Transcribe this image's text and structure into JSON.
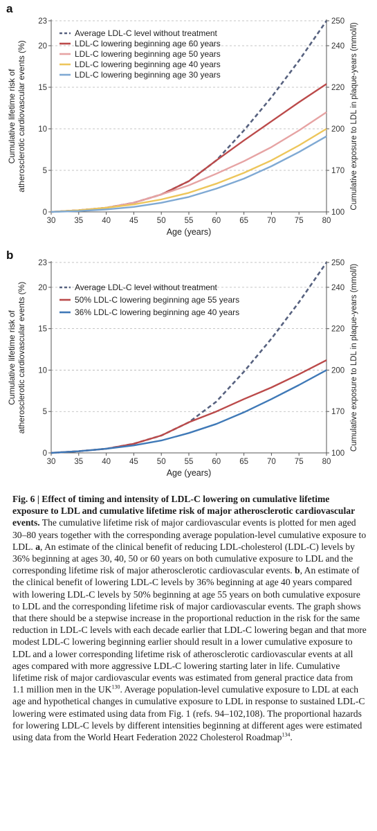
{
  "chart_data": [
    {
      "panel_label": "a",
      "type": "line",
      "xlabel": "Age (years)",
      "ylabel_lines": [
        "Cumulative lifetime risk of",
        "atherosclerotic cardiovascular events (%)"
      ],
      "y2label": "Cumulative exposure to LDL in plaque-years (mmol/l)",
      "xlim": [
        30,
        80
      ],
      "ylim": [
        0,
        23
      ],
      "xticks": [
        "30",
        "35",
        "40",
        "45",
        "50",
        "55",
        "60",
        "65",
        "70",
        "75",
        "80"
      ],
      "yticks": [
        "0",
        "5",
        "10",
        "15",
        "20",
        "23"
      ],
      "y2ticks": [
        "100",
        "170",
        "200",
        "220",
        "240",
        "250"
      ],
      "grid": true,
      "legend_position": "top-left",
      "x": [
        30,
        35,
        40,
        45,
        50,
        55,
        60,
        65,
        70,
        75,
        80
      ],
      "series": [
        {
          "name": "Average LDL-C level without treatment",
          "color": "#56617f",
          "dashed": true,
          "values": [
            0,
            0.2,
            0.5,
            1.1,
            2.1,
            3.7,
            6.2,
            9.8,
            13.8,
            18.2,
            23.0
          ]
        },
        {
          "name": "LDL-C lowering beginning age 60 years",
          "color": "#bb4a4a",
          "dashed": false,
          "values": [
            0,
            0.2,
            0.5,
            1.1,
            2.1,
            3.7,
            6.2,
            8.6,
            10.9,
            13.2,
            15.4
          ]
        },
        {
          "name": "LDL-C lowering beginning age 50 years",
          "color": "#e6a3a3",
          "dashed": false,
          "values": [
            0,
            0.2,
            0.5,
            1.1,
            2.1,
            3.2,
            4.6,
            6.1,
            7.8,
            9.8,
            12.0
          ]
        },
        {
          "name": "LDL-C lowering beginning age 40 years",
          "color": "#edc65b",
          "dashed": false,
          "values": [
            0,
            0.2,
            0.5,
            0.9,
            1.5,
            2.3,
            3.4,
            4.7,
            6.2,
            8.0,
            10.0
          ]
        },
        {
          "name": "LDL-C lowering beginning age 30 years",
          "color": "#7fa9d3",
          "dashed": false,
          "values": [
            0,
            0.1,
            0.3,
            0.6,
            1.1,
            1.8,
            2.8,
            4.0,
            5.5,
            7.2,
            9.1
          ]
        }
      ]
    },
    {
      "panel_label": "b",
      "type": "line",
      "xlabel": "Age (years)",
      "ylabel_lines": [
        "Cumulative lifetime risk of",
        "atherosclerotic cardiovascular events (%)"
      ],
      "y2label": "Cumulative exposure to LDL in plaque-years (mmol/l)",
      "xlim": [
        30,
        80
      ],
      "ylim": [
        0,
        23
      ],
      "xticks": [
        "30",
        "35",
        "40",
        "45",
        "50",
        "55",
        "60",
        "65",
        "70",
        "75",
        "80"
      ],
      "yticks": [
        "0",
        "5",
        "10",
        "15",
        "20",
        "23"
      ],
      "y2ticks": [
        "100",
        "170",
        "200",
        "220",
        "240",
        "250"
      ],
      "grid": true,
      "legend_position": "top-left",
      "x": [
        30,
        35,
        40,
        45,
        50,
        55,
        60,
        65,
        70,
        75,
        80
      ],
      "series": [
        {
          "name": "Average LDL-C level without treatment",
          "color": "#56617f",
          "dashed": true,
          "values": [
            0,
            0.2,
            0.5,
            1.1,
            2.1,
            3.7,
            6.2,
            9.8,
            13.8,
            18.2,
            23.0
          ]
        },
        {
          "name": "50% LDL-C lowering beginning age 55 years",
          "color": "#bb4a4a",
          "dashed": false,
          "values": [
            0,
            0.2,
            0.5,
            1.1,
            2.1,
            3.7,
            5.0,
            6.5,
            7.9,
            9.5,
            11.2
          ]
        },
        {
          "name": "36% LDL-C lowering beginning age 40 years",
          "color": "#3f79b7",
          "dashed": false,
          "values": [
            0,
            0.2,
            0.5,
            0.9,
            1.5,
            2.4,
            3.5,
            4.9,
            6.5,
            8.2,
            10.0
          ]
        }
      ]
    }
  ],
  "caption": {
    "title": "Fig. 6 | Effect of timing and intensity of LDL-C lowering on cumulative lifetime exposure to LDL and cumulative lifetime risk of major atherosclerotic cardiovascular events.",
    "body_1": "The cumulative lifetime risk of major cardiovascular events is plotted for men aged 30–80 years together with the corresponding average population-level cumulative exposure to LDL.",
    "label_a": "a",
    "text_a": ", An estimate of the clinical benefit of reducing LDL-cholesterol (LDL-C) levels by 36% beginning at ages 30, 40, 50 or 60 years on both cumulative exposure to LDL and the corresponding lifetime risk of major atherosclerotic cardiovascular events.",
    "label_b": "b",
    "text_b": ", An estimate of the clinical benefit of lowering LDL-C levels by 36% beginning at age 40 years compared with lowering LDL-C levels by 50% beginning at age 55 years on both cumulative exposure to LDL and the corresponding lifetime risk of major cardiovascular events. The graph shows that there should be a stepwise increase in the proportional reduction in the risk for the same reduction in LDL-C levels with each decade earlier that LDL-C lowering began and that more modest LDL-C lowering beginning earlier should result in a lower cumulative exposure to LDL and a lower corresponding lifetime risk of atherosclerotic cardiovascular events at all ages compared with more aggressive LDL-C lowering starting later in life. Cumulative lifetime risk of major cardiovascular events was estimated from general practice data from 1.1 million men in the UK",
    "ref_1": "130",
    "text_c": ". Average population-level cumulative exposure to LDL at each age and hypothetical changes in cumulative exposure to LDL in response to sustained LDL-C lowering were estimated using data from Fig. 1 (refs. 94–102,108). The proportional hazards for lowering LDL-C levels by different intensities beginning at different ages were estimated using data from the World Heart Federation 2022 Cholesterol Roadmap",
    "ref_2": "134",
    "text_end": "."
  }
}
